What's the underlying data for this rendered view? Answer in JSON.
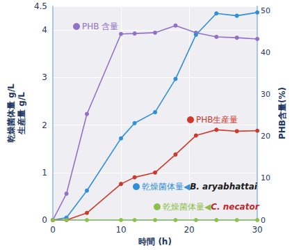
{
  "chart_data": {
    "type": "line",
    "x": [
      0,
      2,
      5,
      10,
      12,
      15,
      18,
      21,
      24,
      27,
      30
    ],
    "series": [
      {
        "name": "PHB 含量",
        "color": "#9370c8",
        "axis": "y2",
        "values": [
          0,
          6.3,
          25.3,
          44.4,
          44.5,
          44.7,
          46.4,
          44.7,
          43.7,
          43.5,
          43.2
        ]
      },
      {
        "name": "乾燥菌体量◀B. aryabhattai",
        "color": "#2f8fd8",
        "values": [
          0,
          0.05,
          0.62,
          1.72,
          2.04,
          2.27,
          2.97,
          3.9,
          4.35,
          4.3,
          4.37
        ]
      },
      {
        "name": "PHB生産量",
        "color": "#d03a2c",
        "values": [
          0,
          0,
          0.15,
          0.76,
          0.9,
          1.0,
          1.38,
          1.78,
          1.9,
          1.87,
          1.88
        ]
      },
      {
        "name": "乾燥菌体量◀C. necator",
        "color": "#8dc04a",
        "values": [
          0,
          0,
          0,
          0,
          0,
          0,
          0,
          0,
          0,
          0,
          0
        ]
      }
    ],
    "xlabel": "時間 (h)",
    "ylabel": "乾燥菌体量 g/L\n生産量 g/L",
    "y2label": "PHB含量(%)",
    "xlim": [
      0,
      30
    ],
    "xticks": [
      0,
      10,
      20,
      30
    ],
    "ylim": [
      0,
      4.5
    ],
    "yticks": [
      0,
      1,
      2,
      3,
      4
    ],
    "y2lim": [
      0,
      51
    ],
    "y2ticks": [
      0,
      10,
      20,
      30,
      40,
      50
    ],
    "grid": true,
    "marker": "circle"
  }
}
